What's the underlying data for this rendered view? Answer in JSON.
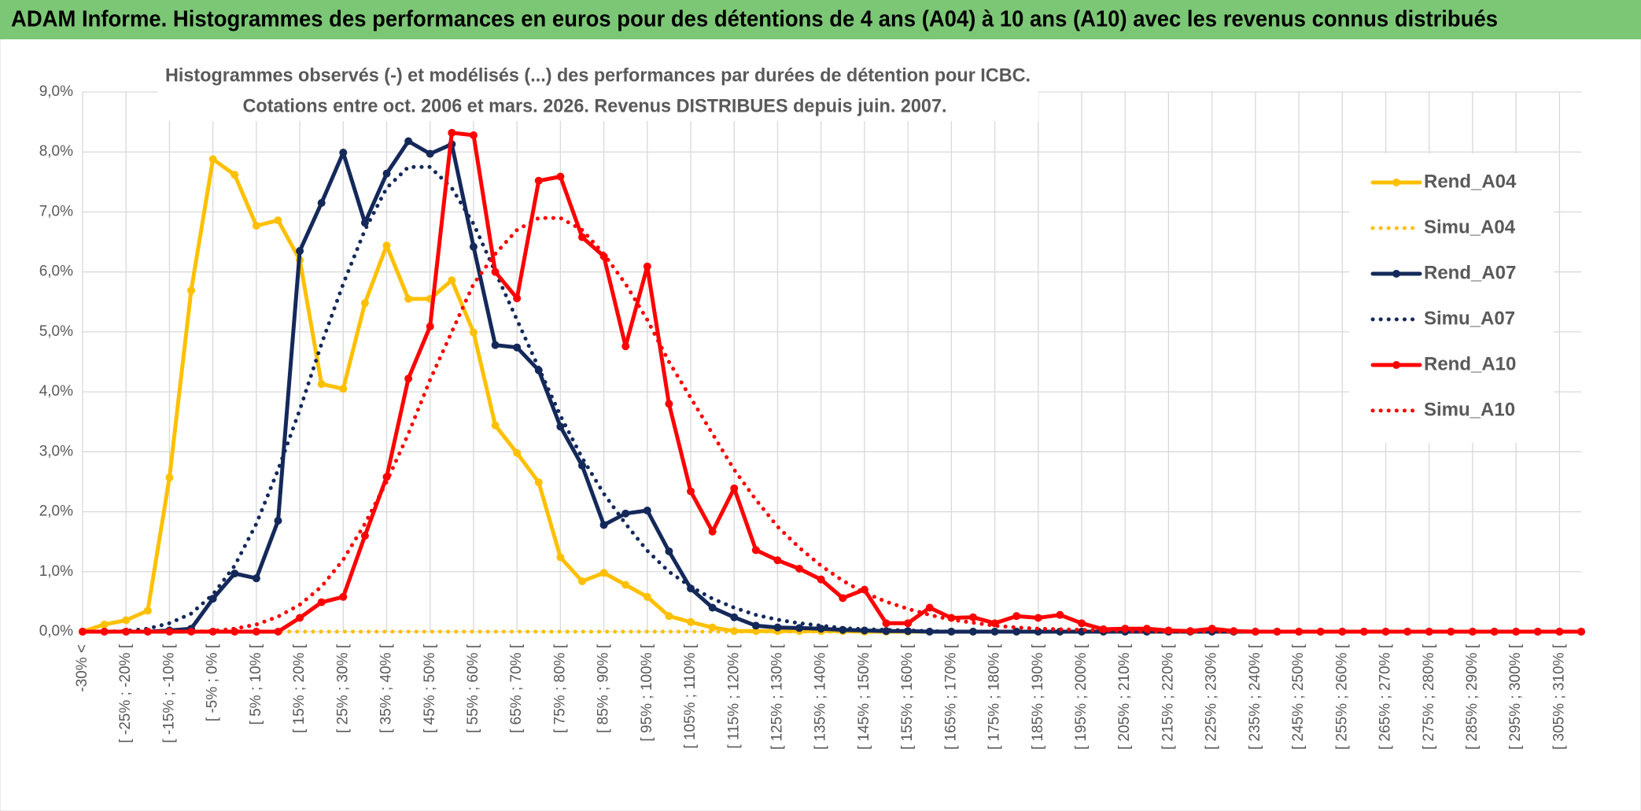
{
  "header": {
    "title": "ADAM Informe. Histogrammes des performances en euros pour des détentions de 4 ans (A04) à 10 ans (A10) avec les revenus connus distribués"
  },
  "chart_data": {
    "type": "line",
    "title": "Histogrammes observés (-) et modélisés (...) des performances par durées de détention pour ICBC.",
    "subtitle": "Cotations entre oct. 2006 et mars. 2026. Revenus DISTRIBUES depuis juin. 2007.",
    "categories": [
      "-30% <",
      null,
      "[ -25% ; -20% [",
      null,
      "[ -15% ; -10% [",
      null,
      "[ -5% ; 0% [",
      null,
      "[ 5% ; 10% [",
      null,
      "[ 15% ; 20% [",
      null,
      "[ 25% ; 30% [",
      null,
      "[ 35% ; 40% [",
      null,
      "[ 45% ; 50% [",
      null,
      "[ 55% ; 60% [",
      null,
      "[ 65% ; 70% [",
      null,
      "[ 75% ; 80% [",
      null,
      "[ 85% ; 90% [",
      null,
      "[ 95% ; 100% [",
      null,
      "[ 105% ; 110% [",
      null,
      "[ 115% ; 120% [",
      null,
      "[ 125% ; 130% [",
      null,
      "[ 135% ; 140% [",
      null,
      "[ 145% ; 150% [",
      null,
      "[ 155% ; 160% [",
      null,
      "[ 165% ; 170% [",
      null,
      "[ 175% ; 180% [",
      null,
      "[ 185% ; 190% [",
      null,
      "[ 195% ; 200% [",
      null,
      "[ 205% ; 210% [",
      null,
      "[ 215% ; 220% [",
      null,
      "[ 225% ; 230% [",
      null,
      "[ 235% ; 240% [",
      null,
      "[ 245% ; 250% [",
      null,
      "[ 255% ; 260% [",
      null,
      "[ 265% ; 270% [",
      null,
      "[ 275% ; 280% [",
      null,
      "[ 285% ; 290% [",
      null,
      "[ 295% ; 300% [",
      null,
      "[ 305% ; 310% [",
      null
    ],
    "ylim": [
      0,
      9
    ],
    "yticks": [
      {
        "value": 0,
        "label": "0,0%"
      },
      {
        "value": 1,
        "label": "1,0%"
      },
      {
        "value": 2,
        "label": "2,0%"
      },
      {
        "value": 3,
        "label": "3,0%"
      },
      {
        "value": 4,
        "label": "4,0%"
      },
      {
        "value": 5,
        "label": "5,0%"
      },
      {
        "value": 6,
        "label": "6,0%"
      },
      {
        "value": 7,
        "label": "7,0%"
      },
      {
        "value": 8,
        "label": "8,0%"
      },
      {
        "value": 9,
        "label": "9,0%"
      }
    ],
    "grid": true,
    "legend": "right",
    "series": [
      {
        "name": "Rend_A04",
        "color": "#FFC000",
        "line_style": "solid",
        "values": [
          0,
          0.12,
          0.19,
          0.35,
          2.57,
          5.69,
          7.88,
          7.62,
          6.77,
          6.86,
          6.2,
          4.13,
          4.05,
          5.48,
          6.44,
          5.55,
          5.55,
          5.86,
          4.99,
          3.44,
          2.98,
          2.49,
          1.24,
          0.84,
          0.98,
          0.78,
          0.58,
          0.26,
          0.16,
          0.07,
          0.01,
          0.01,
          0.01,
          0.01,
          0.01,
          0.01,
          0,
          0,
          0,
          0,
          0,
          0,
          0,
          0,
          0,
          0,
          0,
          0,
          0,
          0,
          0,
          0,
          0,
          0,
          0,
          0,
          0,
          0,
          0,
          0,
          0,
          0,
          0,
          0,
          0,
          0,
          0,
          0,
          0,
          0
        ]
      },
      {
        "name": "Simu_A04",
        "color": "#FFC000",
        "line_style": "dotted",
        "values": [
          0,
          0,
          0,
          0,
          0,
          0,
          0,
          0,
          0,
          0,
          0,
          0,
          0,
          0,
          0,
          0,
          0,
          0,
          0,
          0,
          0,
          0,
          0,
          0,
          0,
          0,
          0,
          0,
          0,
          0,
          0,
          0,
          0,
          0,
          0,
          0,
          0,
          0,
          0,
          0,
          0,
          0,
          0,
          0,
          0,
          0,
          0,
          0,
          0,
          0,
          0,
          0,
          0,
          0,
          0,
          0,
          0,
          0,
          0,
          0,
          0,
          0,
          0,
          0,
          0,
          0,
          0,
          0,
          0,
          0
        ]
      },
      {
        "name": "Rend_A07",
        "color": "#14295A",
        "line_style": "solid",
        "values": [
          0,
          0,
          0,
          0,
          0.02,
          0.05,
          0.55,
          0.97,
          0.89,
          1.85,
          6.35,
          7.15,
          7.99,
          6.82,
          7.64,
          8.18,
          7.97,
          8.13,
          6.42,
          4.78,
          4.74,
          4.36,
          3.42,
          2.77,
          1.78,
          1.97,
          2.02,
          1.34,
          0.72,
          0.4,
          0.24,
          0.1,
          0.07,
          0.06,
          0.05,
          0.03,
          0.02,
          0.01,
          0.01,
          0,
          0,
          0,
          0,
          0,
          0,
          0,
          0,
          0,
          0,
          0,
          0,
          0,
          0,
          0,
          0,
          0,
          0,
          0,
          0,
          0,
          0,
          0,
          0,
          0,
          0,
          0,
          0,
          0,
          0,
          0
        ]
      },
      {
        "name": "Simu_A07",
        "color": "#14295A",
        "line_style": "dotted",
        "values": [
          0,
          0,
          0.01,
          0.05,
          0.14,
          0.3,
          0.62,
          1.1,
          1.8,
          2.7,
          3.7,
          4.8,
          5.8,
          6.7,
          7.4,
          7.75,
          7.75,
          7.4,
          6.8,
          6.0,
          5.2,
          4.4,
          3.6,
          2.9,
          2.3,
          1.8,
          1.35,
          1.0,
          0.75,
          0.55,
          0.4,
          0.28,
          0.2,
          0.14,
          0.1,
          0.06,
          0.04,
          0.03,
          0.02,
          0.01,
          0,
          0,
          0,
          0,
          0,
          0,
          0,
          0,
          0,
          0,
          0,
          0,
          0,
          0,
          0,
          0,
          0,
          0,
          0,
          0,
          0,
          0,
          0,
          0,
          0,
          0,
          0,
          0,
          0,
          0
        ]
      },
      {
        "name": "Rend_A10",
        "color": "#FF0000",
        "line_style": "solid",
        "values": [
          0,
          0,
          0,
          0,
          0,
          0,
          0,
          0,
          0,
          0,
          0.23,
          0.49,
          0.58,
          1.6,
          2.58,
          4.22,
          5.09,
          8.32,
          8.28,
          6.0,
          5.56,
          7.52,
          7.59,
          6.58,
          6.26,
          4.76,
          6.09,
          3.8,
          2.34,
          1.67,
          2.39,
          1.36,
          1.19,
          1.05,
          0.87,
          0.56,
          0.7,
          0.14,
          0.14,
          0.4,
          0.23,
          0.24,
          0.14,
          0.26,
          0.23,
          0.28,
          0.14,
          0.04,
          0.05,
          0.05,
          0.02,
          0.01,
          0.05,
          0.01,
          0,
          0,
          0,
          0,
          0,
          0,
          0,
          0,
          0,
          0,
          0,
          0,
          0,
          0,
          0,
          0
        ]
      },
      {
        "name": "Simu_A10",
        "color": "#FF0000",
        "line_style": "dotted",
        "values": [
          0,
          0,
          0,
          0,
          0,
          0,
          0.01,
          0.05,
          0.12,
          0.25,
          0.45,
          0.75,
          1.2,
          1.8,
          2.5,
          3.3,
          4.2,
          5.0,
          5.8,
          6.3,
          6.7,
          6.9,
          6.9,
          6.7,
          6.3,
          5.8,
          5.2,
          4.5,
          3.9,
          3.3,
          2.7,
          2.2,
          1.75,
          1.4,
          1.1,
          0.85,
          0.65,
          0.5,
          0.38,
          0.28,
          0.2,
          0.15,
          0.1,
          0.07,
          0.05,
          0.04,
          0.03,
          0.02,
          0.01,
          0,
          0,
          0,
          0,
          0,
          0,
          0,
          0,
          0,
          0,
          0,
          0,
          0,
          0,
          0,
          0,
          0,
          0,
          0,
          0,
          0
        ]
      }
    ]
  }
}
